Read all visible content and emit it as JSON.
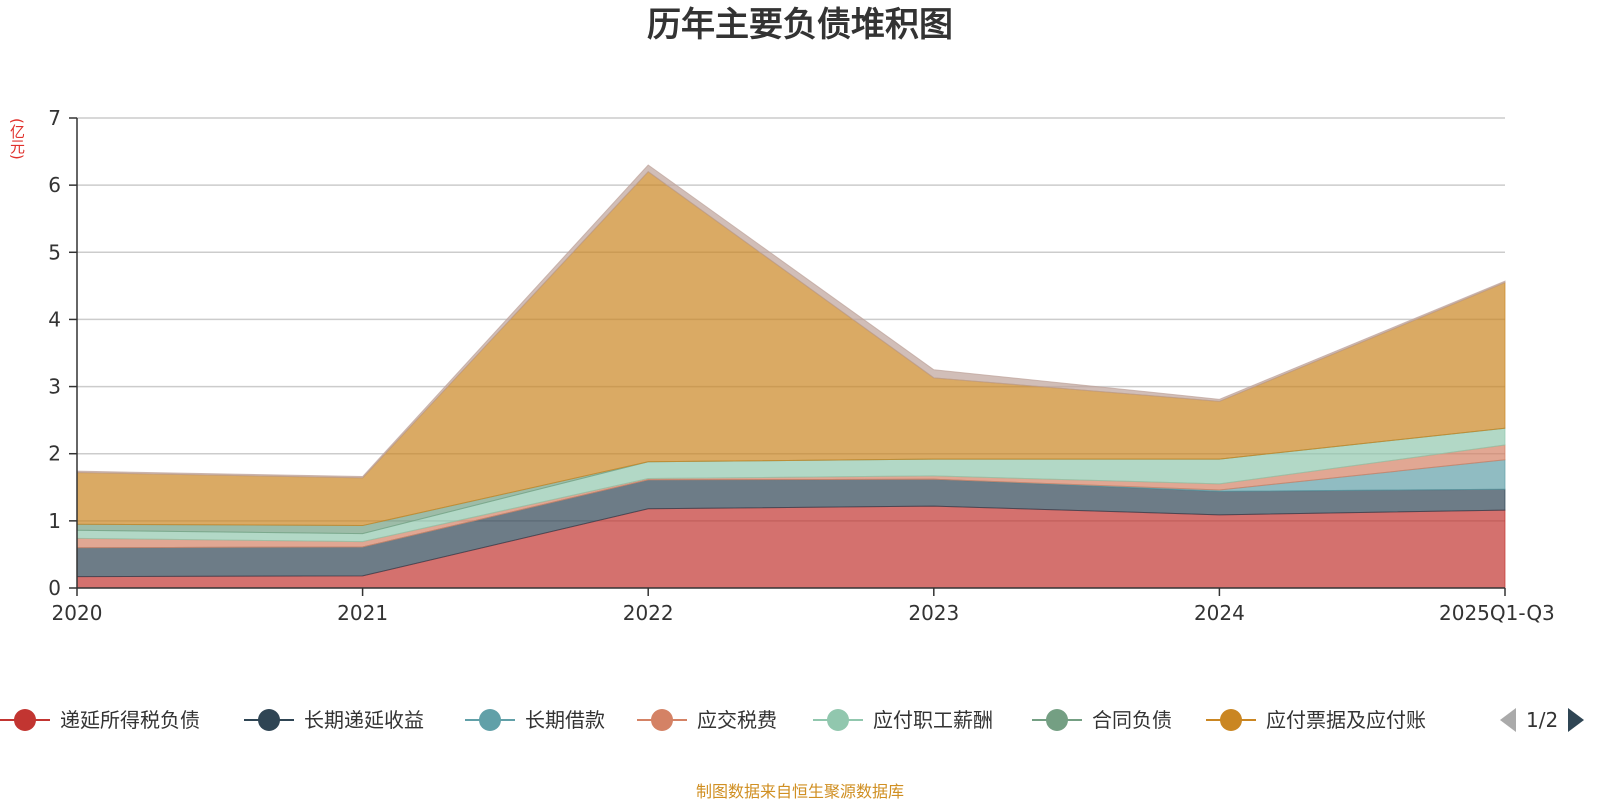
{
  "chart_data": {
    "type": "area",
    "stacked": true,
    "title": "历年主要负债堆积图",
    "unit": "(亿元)",
    "categories": [
      "2020",
      "2021",
      "2022",
      "2023",
      "2024",
      "2025Q1-Q3"
    ],
    "ylim": [
      0,
      7
    ],
    "yticks": [
      "0",
      "1",
      "2",
      "3",
      "4",
      "5",
      "6",
      "7"
    ],
    "grid": true,
    "series": [
      {
        "name": "递延所得税负债",
        "color": "#c23531",
        "values": [
          0.17,
          0.18,
          1.18,
          1.22,
          1.09,
          1.16
        ]
      },
      {
        "name": "长期递延收益",
        "color": "#2f4554",
        "values": [
          0.43,
          0.43,
          0.43,
          0.4,
          0.35,
          0.31
        ]
      },
      {
        "name": "长期借款",
        "color": "#61a0a8",
        "values": [
          0.0,
          0.0,
          0.0,
          0.0,
          0.02,
          0.44
        ]
      },
      {
        "name": "应交税费",
        "color": "#d48265",
        "values": [
          0.14,
          0.08,
          0.02,
          0.05,
          0.09,
          0.22
        ]
      },
      {
        "name": "应付职工薪酬",
        "color": "#91c7ae",
        "values": [
          0.12,
          0.12,
          0.25,
          0.25,
          0.37,
          0.25
        ]
      },
      {
        "name": "合同负债",
        "color": "#749f83",
        "values": [
          0.09,
          0.12,
          0.0,
          0.0,
          0.0,
          0.0
        ]
      },
      {
        "name": "应付票据及应付账款",
        "color": "#ca8622",
        "values": [
          0.77,
          0.71,
          4.32,
          1.21,
          0.86,
          2.17
        ]
      },
      {
        "name": "",
        "color": "#bda29a",
        "values": [
          0.02,
          0.02,
          0.1,
          0.12,
          0.03,
          0.02
        ]
      }
    ],
    "legend_position": "bottom"
  },
  "legend": {
    "visible_items": [
      "递延所得税负债",
      "长期递延收益",
      "长期借款",
      "应交税费",
      "应付职工薪酬",
      "合同负债",
      "应付票据及应付账"
    ],
    "page": "1/2"
  },
  "footer": "制图数据来自恒生聚源数据库"
}
